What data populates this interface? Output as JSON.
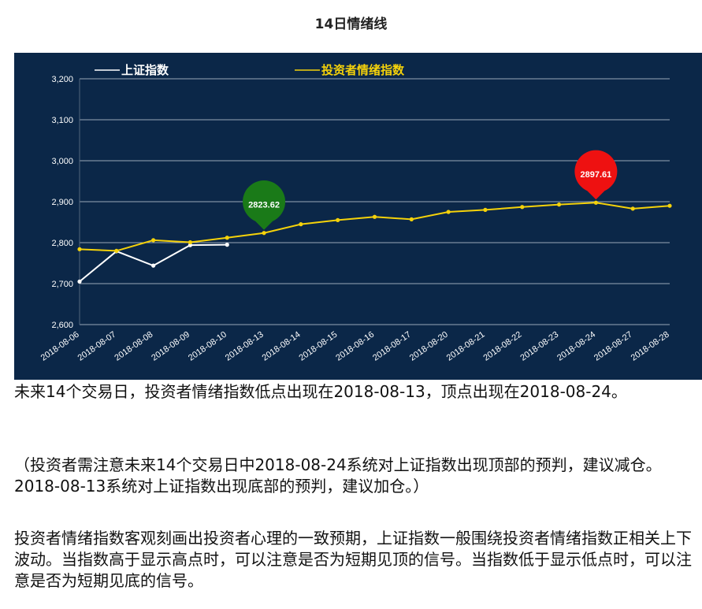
{
  "page_title": "14日情绪线",
  "chart_data": {
    "type": "line",
    "categories": [
      "2018-08-06",
      "2018-08-07",
      "2018-08-08",
      "2018-08-09",
      "2018-08-10",
      "2018-08-13",
      "2018-08-14",
      "2018-08-15",
      "2018-08-16",
      "2018-08-17",
      "2018-08-20",
      "2018-08-21",
      "2018-08-22",
      "2018-08-23",
      "2018-08-24",
      "2018-08-27",
      "2018-08-28"
    ],
    "series": [
      {
        "name": "上证指数",
        "color": "#ffffff",
        "values": [
          2705,
          2779,
          2744,
          2794,
          2795,
          null,
          null,
          null,
          null,
          null,
          null,
          null,
          null,
          null,
          null,
          null,
          null
        ]
      },
      {
        "name": "投资者情绪指数",
        "color": "#f5d20a",
        "values": [
          2784,
          2780,
          2806,
          2801,
          2812,
          2823.62,
          2845,
          2855,
          2863,
          2857,
          2875,
          2880,
          2887,
          2893,
          2897.61,
          2883,
          2890
        ]
      }
    ],
    "ylim": [
      2600,
      3200
    ],
    "yticks": [
      2600,
      2700,
      2800,
      2900,
      3000,
      3100,
      3200
    ],
    "ytick_labels": [
      "2,600",
      "2,700",
      "2,800",
      "2,900",
      "3,000",
      "3,100",
      "3,200"
    ],
    "grid": true,
    "legend_position": "top",
    "markers": [
      {
        "label": "2823.62",
        "category": "2018-08-13",
        "value": 2823.62,
        "kind": "low",
        "color": "#1a7a18"
      },
      {
        "label": "2897.61",
        "category": "2018-08-24",
        "value": 2897.61,
        "kind": "high",
        "color": "#ee1111"
      }
    ],
    "background": "#0b2748"
  },
  "text": {
    "p1": "未来14个交易日，投资者情绪指数低点出现在2018-08-13，顶点出现在2018-08-24。",
    "p2": "（投资者需注意未来14个交易日中2018-08-24系统对上证指数出现顶部的预判，建议减仓。2018-08-13系统对上证指数出现底部的预判，建议加仓。）",
    "p3": "投资者情绪指数客观刻画出投资者心理的一致预期，上证指数一般围绕投资者情绪指数正相关上下波动。当指数高于显示高点时，可以注意是否为短期见顶的信号。当指数低于显示低点时，可以注意是否为短期见底的信号。"
  }
}
